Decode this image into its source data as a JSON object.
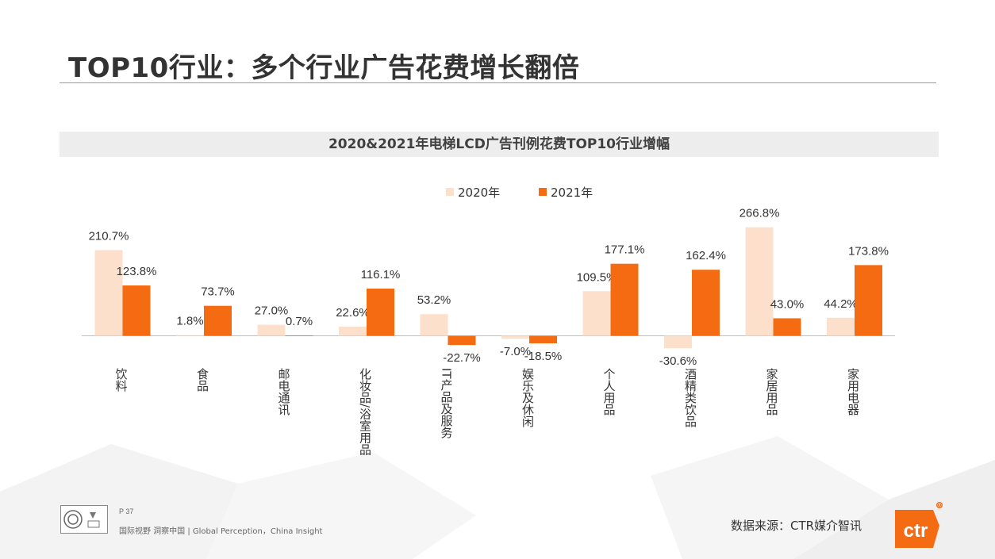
{
  "page": {
    "title": "TOP10行业：多个行业广告花费增长翻倍",
    "page_number": "P 37",
    "tagline": "国际视野 洞察中国 |  Global Perception，China Insight",
    "source": "数据来源：CTR媒介智讯",
    "logo_text": "ctr",
    "logo_mark": "®"
  },
  "colors": {
    "series_2020": "#fde0cc",
    "series_2021": "#f56b12",
    "axis": "#bfbfbf",
    "label": "#333333"
  },
  "chart_data": {
    "type": "bar",
    "title": "2020&2021年电梯LCD广告刊例花费TOP10行业增幅",
    "legend_position": "top",
    "categories": [
      "饮料",
      "食品",
      "邮电通讯",
      "化妆品/浴室用品",
      "IT产品及服务",
      "娱乐及休闲",
      "个人用品",
      "酒精类饮品",
      "家居用品",
      "家用电器"
    ],
    "series": [
      {
        "name": "2020年",
        "values": [
          210.7,
          1.8,
          27.0,
          22.6,
          53.2,
          -7.0,
          109.5,
          -30.6,
          266.8,
          44.2
        ],
        "labels": [
          "210.7%",
          "1.8%",
          "27.0%",
          "22.6%",
          "53.2%",
          "-7.0%",
          "109.5%",
          "-30.6%",
          "266.8%",
          "44.2%"
        ]
      },
      {
        "name": "2021年",
        "values": [
          123.8,
          73.7,
          0.7,
          116.1,
          -22.7,
          -18.5,
          177.1,
          162.4,
          43.0,
          173.8
        ],
        "labels": [
          "123.8%",
          "73.7%",
          "0.7%",
          "116.1%",
          "-22.7%",
          "-18.5%",
          "177.1%",
          "162.4%",
          "43.0%",
          "173.8%"
        ]
      }
    ],
    "ylim": [
      -40,
      280
    ],
    "grid": false
  }
}
